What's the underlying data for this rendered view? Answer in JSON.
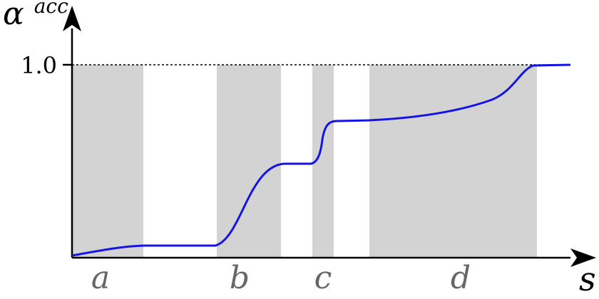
{
  "figure": {
    "y_axis_label": {
      "base": "α",
      "superscript": "acc"
    },
    "x_axis_label": "s",
    "reference_tick_label": "1.0",
    "regions": [
      {
        "label": "a"
      },
      {
        "label": "b"
      },
      {
        "label": "c"
      },
      {
        "label": "d"
      }
    ],
    "colors": {
      "curve": "#1414e6",
      "shading": "#d3d3d3",
      "axes": "#000000",
      "region_labels": "#666666",
      "dotted_line": "#000000"
    }
  }
}
